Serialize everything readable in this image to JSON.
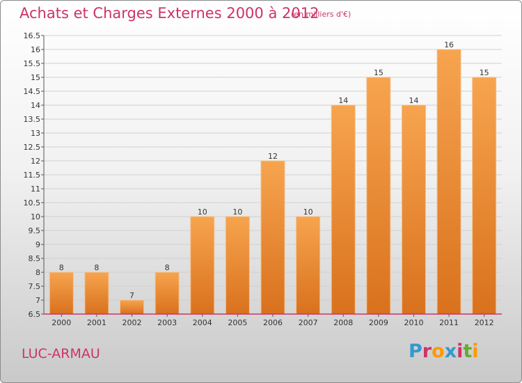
{
  "title": "Achats et Charges Externes 2000 à 2012",
  "unit": "(en milliers d'€)",
  "commune": "LUC-ARMAU",
  "brand": {
    "text": "Proxiti",
    "letter_colors": [
      "#3399cc",
      "#cc3366",
      "#ff9900",
      "#3399cc",
      "#cc3366",
      "#66aa33",
      "#ff9900"
    ]
  },
  "colors": {
    "title": "#cc3366",
    "bar_top": "#f7a44f",
    "bar_bottom": "#d9711d",
    "axis": "#cc3366",
    "grid": "#d0d0d0"
  },
  "chart_data": {
    "type": "bar",
    "categories": [
      "2000",
      "2001",
      "2002",
      "2003",
      "2004",
      "2005",
      "2006",
      "2007",
      "2008",
      "2009",
      "2010",
      "2011",
      "2012"
    ],
    "values": [
      8,
      8,
      7,
      8,
      10,
      10,
      12,
      10,
      14,
      15,
      14,
      16,
      15
    ],
    "data_labels": [
      "8",
      "8",
      "7",
      "8",
      "10",
      "10",
      "12",
      "10",
      "14",
      "15",
      "14",
      "16",
      "15"
    ],
    "ylim": [
      6.5,
      16.5
    ],
    "yticks": [
      "6.5",
      "7",
      "7.5",
      "8",
      "8.5",
      "9",
      "9.5",
      "10",
      "10.5",
      "11",
      "11.5",
      "12",
      "12.5",
      "13",
      "13.5",
      "14",
      "14.5",
      "15",
      "15.5",
      "16",
      "16.5"
    ],
    "grid": true,
    "legend": "none"
  }
}
